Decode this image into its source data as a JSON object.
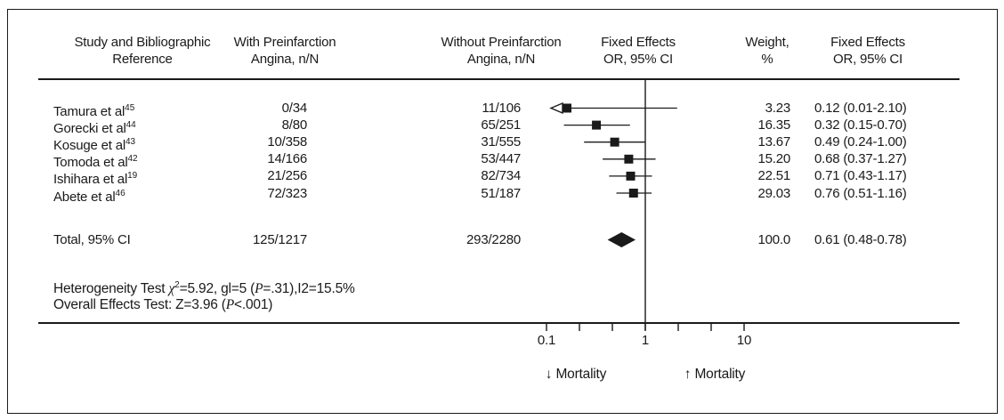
{
  "header": {
    "study_l1": "Study and Bibliographic",
    "study_l2": "Reference",
    "with_l1": "With Preinfarction",
    "with_l2": "Angina, n/N",
    "without_l1": "Without Preinfarction",
    "without_l2": "Angina, n/N",
    "plot_l1": "Fixed Effects",
    "plot_l2": "OR, 95% CI",
    "weight_l1": "Weight,",
    "weight_l2": "%",
    "or_l1": "Fixed Effects",
    "or_l2": "OR, 95% CI"
  },
  "chart_data": {
    "type": "forest",
    "x_scale": "log",
    "axis": {
      "min": 0.1,
      "max": 10,
      "labeled_ticks": [
        {
          "value": 0.1,
          "text": "0.1"
        },
        {
          "value": 1,
          "text": "1"
        },
        {
          "value": 10,
          "text": "10"
        }
      ],
      "minor_ticks_per_decade": 2,
      "left_direction_label": "↓ Mortality",
      "right_direction_label": "↑ Mortality"
    },
    "studies": [
      {
        "name": "Tamura et al",
        "ref": "45",
        "with_n": "0/34",
        "without_n": "11/106",
        "weight": "3.23",
        "or_ci_text": "0.12 (0.01-2.10)",
        "or": 0.12,
        "lo": 0.01,
        "hi": 2.1
      },
      {
        "name": "Gorecki et al",
        "ref": "44",
        "with_n": "8/80",
        "without_n": "65/251",
        "weight": "16.35",
        "or_ci_text": "0.32 (0.15-0.70)",
        "or": 0.32,
        "lo": 0.15,
        "hi": 0.7
      },
      {
        "name": "Kosuge et al",
        "ref": "43",
        "with_n": "10/358",
        "without_n": "31/555",
        "weight": "13.67",
        "or_ci_text": "0.49 (0.24-1.00)",
        "or": 0.49,
        "lo": 0.24,
        "hi": 1.0
      },
      {
        "name": "Tomoda et al",
        "ref": "42",
        "with_n": "14/166",
        "without_n": "53/447",
        "weight": "15.20",
        "or_ci_text": "0.68 (0.37-1.27)",
        "or": 0.68,
        "lo": 0.37,
        "hi": 1.27
      },
      {
        "name": "Ishihara et al",
        "ref": "19",
        "with_n": "21/256",
        "without_n": "82/734",
        "weight": "22.51",
        "or_ci_text": "0.71 (0.43-1.17)",
        "or": 0.71,
        "lo": 0.43,
        "hi": 1.17
      },
      {
        "name": "Abete et al",
        "ref": "46",
        "with_n": "72/323",
        "without_n": "51/187",
        "weight": "29.03",
        "or_ci_text": "0.76 (0.51-1.16)",
        "or": 0.76,
        "lo": 0.51,
        "hi": 1.16
      }
    ],
    "total": {
      "label": "Total, 95% CI",
      "with_n": "125/1217",
      "without_n": "293/2280",
      "weight": "100.0",
      "or_ci_text": "0.61 (0.48-0.78)",
      "or": 0.61,
      "lo": 0.48,
      "hi": 0.78
    }
  },
  "stats": {
    "het_1": "Heterogeneity Test ",
    "het_chi": "χ",
    "het_sup": "2",
    "het_2": "=5.92, gl=5 (",
    "het_p": "P",
    "het_3": "=.31),I2=15.5%",
    "ov_1": "Overall Effects Test: Z=3.96 (",
    "ov_p": "P",
    "ov_2": "<.001)"
  },
  "colors": {
    "ink": "#1a1a1a",
    "background": "#ffffff"
  }
}
